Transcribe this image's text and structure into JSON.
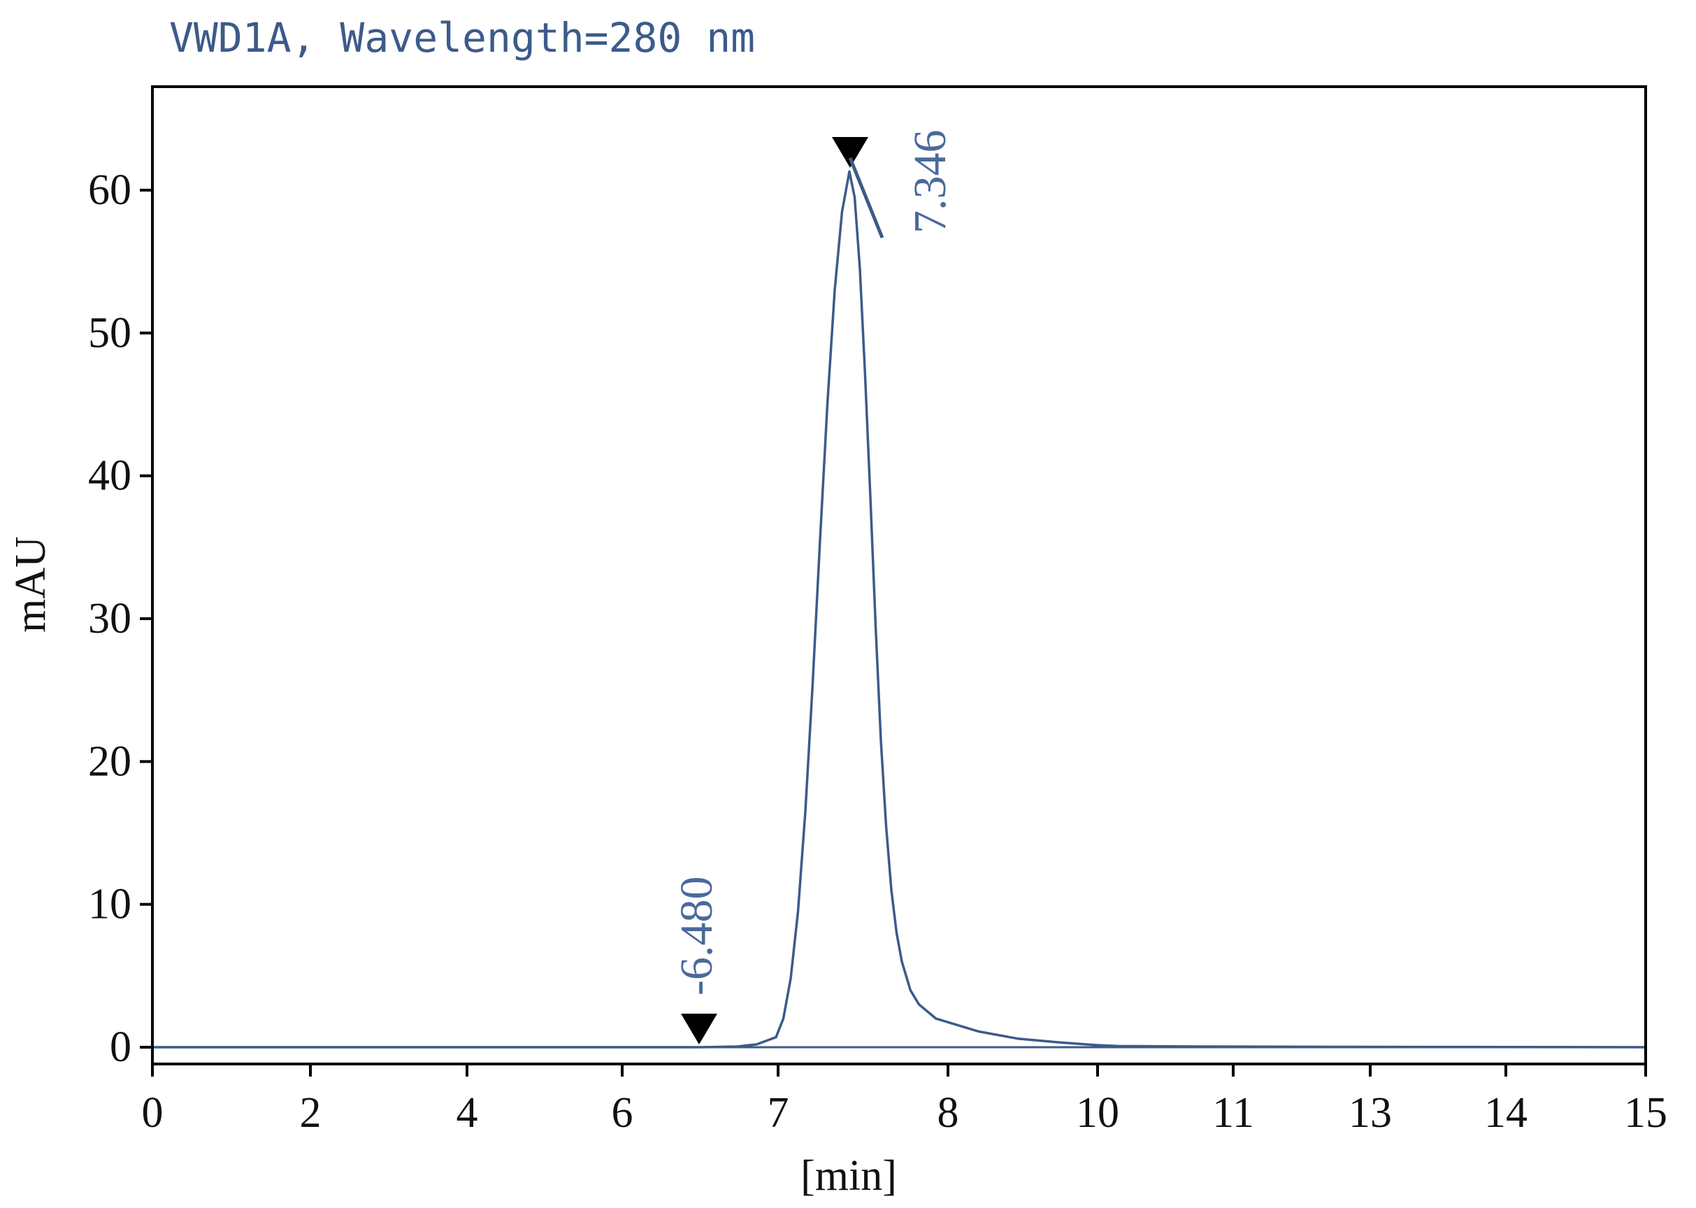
{
  "chart_data": {
    "type": "line",
    "title": "VWD1A, Wavelength=280 nm",
    "xlabel": "[min]",
    "ylabel": "mAU",
    "x_tick_labels": [
      "0",
      "2",
      "4",
      "6",
      "7",
      "8",
      "10",
      "11",
      "13",
      "14",
      "15"
    ],
    "y_ticks": [
      0,
      10,
      20,
      30,
      40,
      50,
      60
    ],
    "y_tick_labels": [
      "0",
      "10",
      "20",
      "30",
      "40",
      "50",
      "60"
    ],
    "xlim": [
      0,
      15
    ],
    "ylim": [
      -1.2,
      67
    ],
    "grid": false,
    "legend": "none",
    "line_color": "#3d5a8a",
    "marker_color": "#000000",
    "series": [
      {
        "values": [
          [
            0,
            0
          ],
          [
            5.0,
            0
          ],
          [
            6.0,
            0
          ],
          [
            6.4,
            0
          ],
          [
            6.5,
            0.05
          ],
          [
            6.55,
            0.2
          ],
          [
            6.6,
            0.7
          ],
          [
            6.65,
            2.0
          ],
          [
            6.7,
            4.8
          ],
          [
            6.75,
            9.5
          ],
          [
            6.8,
            16.5
          ],
          [
            6.85,
            25.5
          ],
          [
            6.9,
            35.5
          ],
          [
            6.95,
            45.0
          ],
          [
            7.0,
            53.0
          ],
          [
            7.05,
            58.5
          ],
          [
            7.1,
            61.3
          ],
          [
            7.15,
            59.5
          ],
          [
            7.2,
            54.5
          ],
          [
            7.25,
            47.0
          ],
          [
            7.3,
            38.5
          ],
          [
            7.35,
            29.5
          ],
          [
            7.4,
            21.5
          ],
          [
            7.45,
            15.5
          ],
          [
            7.5,
            11.0
          ],
          [
            7.55,
            8.0
          ],
          [
            7.6,
            6.0
          ],
          [
            7.7,
            4.0
          ],
          [
            7.8,
            3.0
          ],
          [
            8.0,
            2.0
          ],
          [
            8.5,
            1.1
          ],
          [
            9.0,
            0.6
          ],
          [
            9.5,
            0.35
          ],
          [
            10.0,
            0.15
          ],
          [
            10.3,
            0.08
          ],
          [
            11.0,
            0.05
          ],
          [
            12.0,
            0.03
          ],
          [
            15.0,
            0
          ]
        ]
      }
    ],
    "annotations": [
      {
        "text": "-6.480",
        "x": 5.45,
        "y": 0
      },
      {
        "text": "7.346",
        "x": 7.0,
        "y": 62
      }
    ]
  }
}
